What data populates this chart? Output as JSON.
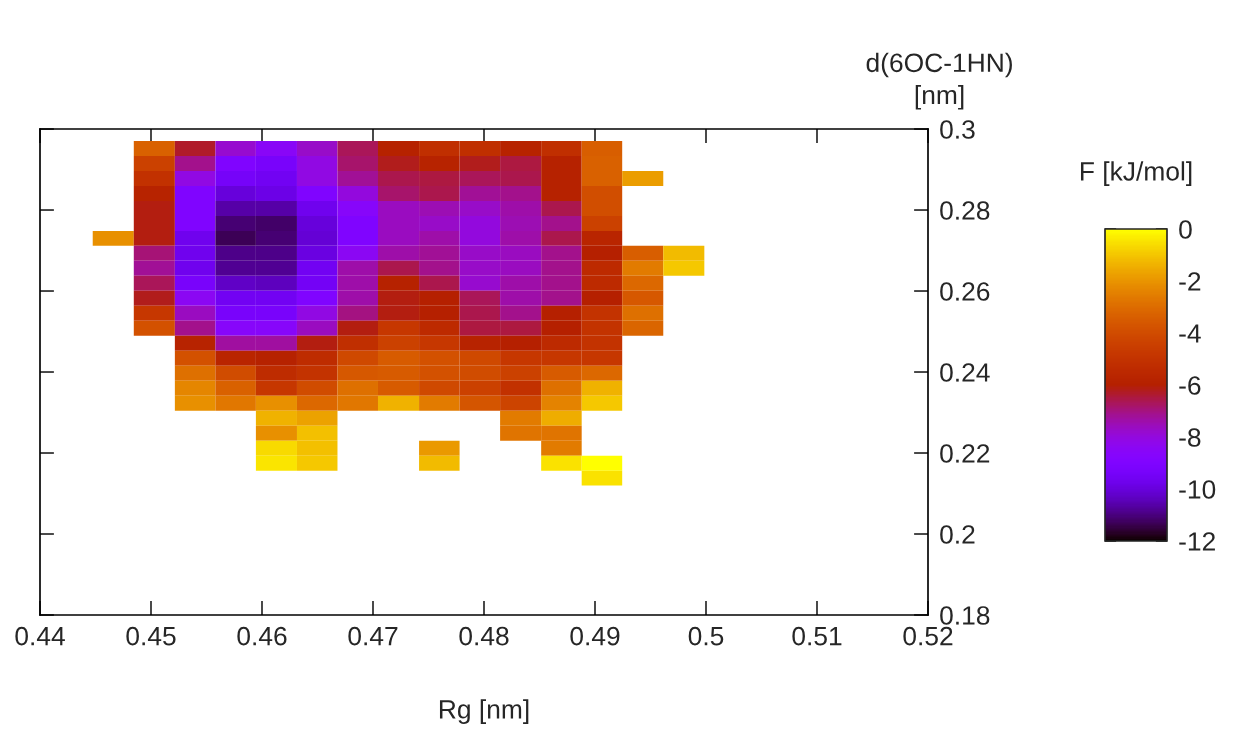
{
  "chart_data": {
    "type": "heatmap",
    "xlabel": "Rg [nm]",
    "ylabel": "d(6OC-1HN)\n[nm]",
    "clabel": "F [kJ/mol]",
    "x": [
      0.4466,
      0.4503,
      0.454,
      0.4576,
      0.4613,
      0.465,
      0.4686,
      0.4723,
      0.476,
      0.4796,
      0.4833,
      0.487,
      0.4906,
      0.4943,
      0.498
    ],
    "y": [
      0.2952,
      0.2915,
      0.2878,
      0.2841,
      0.2804,
      0.2767,
      0.273,
      0.2693,
      0.2656,
      0.2619,
      0.2582,
      0.2545,
      0.2508,
      0.2471,
      0.2434,
      0.2397,
      0.236,
      0.2323,
      0.2286,
      0.2249,
      0.2212,
      0.2175,
      0.2138
    ],
    "cells": [
      [
        null,
        -3.3,
        -6.3,
        -7.8,
        -8.5,
        -7.7,
        -6.7,
        -5.9,
        -5.2,
        -5.2,
        -5.8,
        -5.2,
        -3.4,
        null,
        null
      ],
      [
        null,
        -4.4,
        -7.1,
        -9.0,
        -9.3,
        -8.1,
        -6.8,
        -6.2,
        -5.8,
        -6.2,
        -6.5,
        -5.9,
        -3.3,
        null,
        null
      ],
      [
        null,
        -5.1,
        -8.1,
        -9.4,
        -9.6,
        -8.1,
        -7.2,
        -6.6,
        -6.5,
        -6.7,
        -6.6,
        -5.9,
        -3.3,
        -1.8,
        null
      ],
      [
        null,
        -5.8,
        -9.0,
        -10.0,
        -9.8,
        -9.0,
        -8.0,
        -6.8,
        -6.6,
        -7.2,
        -7.1,
        -5.9,
        -3.9,
        null,
        null
      ],
      [
        null,
        -6.1,
        -9.0,
        -10.6,
        -10.6,
        -9.7,
        -8.6,
        -7.6,
        -7.5,
        -7.7,
        -7.4,
        -6.6,
        -3.9,
        null,
        null
      ],
      [
        null,
        -6.1,
        -9.0,
        -11.1,
        -11.2,
        -10.0,
        -9.0,
        -7.6,
        -7.7,
        -8.0,
        -7.5,
        -7.1,
        -4.4,
        null,
        null
      ],
      [
        -2.1,
        -6.1,
        -9.7,
        -11.3,
        -11.1,
        -10.1,
        -9.0,
        -7.6,
        -7.4,
        -8.0,
        -7.4,
        -6.6,
        -5.7,
        null,
        null
      ],
      [
        null,
        -6.9,
        -9.7,
        -10.9,
        -10.9,
        -9.9,
        -8.4,
        -7.4,
        -7.2,
        -7.7,
        -7.6,
        -7.1,
        -6.0,
        -3.4,
        -1.2
      ],
      [
        null,
        -7.2,
        -9.7,
        -10.8,
        -10.8,
        -9.6,
        -7.4,
        -6.6,
        -7.1,
        -7.7,
        -7.6,
        -7.1,
        -5.4,
        -2.6,
        -0.95
      ],
      [
        null,
        -6.7,
        -9.3,
        -10.3,
        -10.4,
        -9.5,
        -7.4,
        -5.9,
        -6.6,
        -7.8,
        -7.4,
        -7.1,
        -5.4,
        -3.1,
        null
      ],
      [
        null,
        -6.2,
        -8.4,
        -9.6,
        -9.6,
        -9.0,
        -7.4,
        -6.1,
        -6.0,
        -6.7,
        -7.4,
        -7.1,
        -6.0,
        -3.6,
        null
      ],
      [
        null,
        -4.8,
        -7.6,
        -9.3,
        -9.3,
        -8.1,
        -7.0,
        -6.1,
        -6.0,
        -6.6,
        -7.1,
        -6.0,
        -5.0,
        -2.9,
        null
      ],
      [
        null,
        -3.8,
        -7.1,
        -8.6,
        -8.6,
        -7.6,
        -6.1,
        -4.8,
        -5.4,
        -6.5,
        -6.5,
        -6.0,
        -5.0,
        -3.2,
        null
      ],
      [
        null,
        null,
        -5.8,
        -7.3,
        -7.3,
        -6.1,
        -5.2,
        -4.4,
        -4.8,
        -5.8,
        -6.0,
        -5.4,
        -5.0,
        null,
        null
      ],
      [
        null,
        null,
        -3.8,
        -5.7,
        -5.9,
        -5.3,
        -4.1,
        -3.5,
        -3.8,
        -4.1,
        -4.8,
        -4.8,
        -4.8,
        null,
        null
      ],
      [
        null,
        null,
        -2.9,
        -4.0,
        -5.3,
        -5.0,
        -3.6,
        -3.5,
        -3.8,
        -4.0,
        -4.4,
        -3.5,
        -3.1,
        null,
        null
      ],
      [
        null,
        null,
        -2.3,
        -3.3,
        -4.8,
        -4.0,
        -2.9,
        -3.5,
        -4.1,
        -4.4,
        -5.1,
        -2.9,
        -1.4,
        null,
        null
      ],
      [
        null,
        null,
        -2.1,
        -2.7,
        -2.1,
        -3.1,
        -2.7,
        -1.4,
        -2.6,
        -3.7,
        -4.3,
        -2.4,
        -0.95,
        null,
        null
      ],
      [
        null,
        null,
        null,
        null,
        -1.4,
        -1.7,
        null,
        null,
        null,
        null,
        -2.6,
        -1.5,
        null,
        null,
        null
      ],
      [
        null,
        null,
        null,
        null,
        -2.1,
        -1.1,
        null,
        null,
        null,
        null,
        -2.8,
        -2.8,
        null,
        null,
        null
      ],
      [
        null,
        null,
        null,
        null,
        -0.65,
        -1.1,
        null,
        null,
        -1.9,
        null,
        null,
        -2.6,
        null,
        null,
        null
      ],
      [
        null,
        null,
        null,
        null,
        -0.45,
        -0.95,
        null,
        null,
        -1.2,
        null,
        null,
        -0.5,
        0,
        null,
        null
      ],
      [
        null,
        null,
        null,
        null,
        null,
        null,
        null,
        null,
        null,
        null,
        null,
        null,
        -0.5,
        null,
        null
      ]
    ],
    "xlim": [
      0.44,
      0.52
    ],
    "xticks": [
      0.44,
      0.45,
      0.46,
      0.47,
      0.48,
      0.49,
      0.5,
      0.51,
      0.52
    ],
    "ylim": [
      0.18,
      0.3
    ],
    "yticks": [
      0.18,
      0.2,
      0.22,
      0.24,
      0.26,
      0.28,
      0.3
    ],
    "clim": [
      -12,
      0
    ],
    "cticks": [
      0,
      -2,
      -4,
      -6,
      -8,
      -10,
      -12
    ],
    "grid": false
  }
}
